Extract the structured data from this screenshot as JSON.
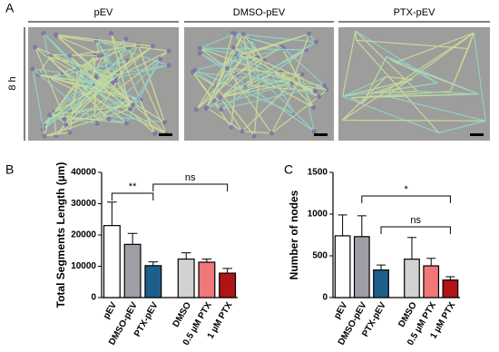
{
  "panel_a": {
    "label": "A",
    "row_label": "8 h",
    "images": [
      "pEV",
      "DMSO-pEV",
      "PTX-pEV"
    ]
  },
  "chart_data": [
    {
      "type": "bar",
      "panel": "B",
      "y_label": "Total Segments Length (µm)",
      "categories": [
        "pEV",
        "DMSO-pEV",
        "PTX-pEV",
        "DMSO",
        "0.5 µM PTX",
        "1 µM PTX"
      ],
      "values": [
        23000,
        17000,
        10200,
        12300,
        11300,
        7800
      ],
      "errors": [
        7500,
        3500,
        1200,
        2000,
        1000,
        1500
      ],
      "colors": [
        "#ffffff",
        "#9e9ea6",
        "#1d5f8a",
        "#d2d2d2",
        "#f07878",
        "#b01414"
      ],
      "ylim": [
        0,
        40000
      ],
      "yticks": [
        0,
        10000,
        20000,
        30000,
        40000
      ],
      "annotations": [
        "**",
        "ns"
      ]
    },
    {
      "type": "bar",
      "panel": "C",
      "y_label": "Number of nodes",
      "categories": [
        "pEV",
        "DMSO-pEV",
        "PTX-pEV",
        "DMSO",
        "0.5 µM PTX",
        "1 µM PTX"
      ],
      "values": [
        740,
        730,
        330,
        460,
        380,
        210
      ],
      "errors": [
        250,
        250,
        60,
        260,
        90,
        40
      ],
      "colors": [
        "#ffffff",
        "#9e9ea6",
        "#1d5f8a",
        "#d2d2d2",
        "#f07878",
        "#b01414"
      ],
      "ylim": [
        0,
        1500
      ],
      "yticks": [
        0,
        500,
        1000,
        1500
      ],
      "annotations": [
        "*",
        "ns"
      ]
    }
  ]
}
